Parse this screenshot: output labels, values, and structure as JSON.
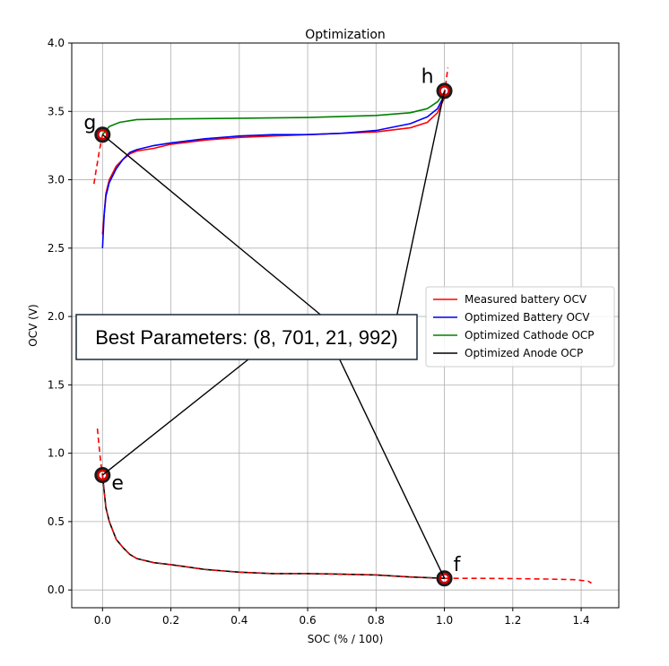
{
  "chart_data": {
    "type": "line",
    "title": "Optimization",
    "xlabel": "SOC (% / 100)",
    "ylabel": "OCV (V)",
    "xlim": [
      -0.09,
      1.51
    ],
    "ylim": [
      -0.13,
      4.0
    ],
    "grid": true,
    "legend_placement": "center-right",
    "x_ticks": [
      0.0,
      0.2,
      0.4,
      0.6,
      0.8,
      1.0,
      1.2,
      1.4
    ],
    "x_tick_labels": [
      "0.0",
      "0.2",
      "0.4",
      "0.6",
      "0.8",
      "1.0",
      "1.2",
      "1.4"
    ],
    "y_ticks": [
      0.0,
      0.5,
      1.0,
      1.5,
      2.0,
      2.5,
      3.0,
      3.5,
      4.0
    ],
    "y_tick_labels": [
      "0.0",
      "0.5",
      "1.0",
      "1.5",
      "2.0",
      "2.5",
      "3.0",
      "3.5",
      "4.0"
    ],
    "series": [
      {
        "name": "Measured battery OCV",
        "color": "#ff0000",
        "style": "solid",
        "x": [
          0.0,
          0.01,
          0.02,
          0.04,
          0.06,
          0.08,
          0.1,
          0.15,
          0.2,
          0.3,
          0.4,
          0.5,
          0.6,
          0.7,
          0.8,
          0.9,
          0.95,
          0.98,
          1.0
        ],
        "y": [
          2.6,
          2.9,
          3.0,
          3.1,
          3.15,
          3.19,
          3.21,
          3.23,
          3.26,
          3.29,
          3.31,
          3.32,
          3.33,
          3.34,
          3.35,
          3.38,
          3.42,
          3.49,
          3.6
        ]
      },
      {
        "name": "Optimized Battery OCV",
        "color": "#0000ff",
        "style": "solid",
        "x": [
          0.0,
          0.005,
          0.01,
          0.02,
          0.04,
          0.06,
          0.08,
          0.1,
          0.15,
          0.2,
          0.3,
          0.4,
          0.5,
          0.6,
          0.7,
          0.8,
          0.9,
          0.95,
          0.98,
          1.0
        ],
        "y": [
          2.5,
          2.75,
          2.88,
          2.98,
          3.08,
          3.15,
          3.2,
          3.22,
          3.25,
          3.27,
          3.3,
          3.32,
          3.33,
          3.33,
          3.34,
          3.36,
          3.41,
          3.46,
          3.52,
          3.62
        ]
      },
      {
        "name": "Optimized Cathode OCP",
        "color": "#008000",
        "style": "solid",
        "x": [
          0.0,
          0.02,
          0.05,
          0.1,
          0.2,
          0.4,
          0.6,
          0.8,
          0.9,
          0.95,
          0.98,
          1.0
        ],
        "y": [
          3.33,
          3.39,
          3.42,
          3.44,
          3.445,
          3.45,
          3.455,
          3.47,
          3.49,
          3.52,
          3.57,
          3.64
        ]
      },
      {
        "name": "Optimized Anode OCP",
        "color": "#000000",
        "style": "solid",
        "x": [
          0.0,
          0.01,
          0.02,
          0.04,
          0.06,
          0.08,
          0.1,
          0.15,
          0.2,
          0.3,
          0.4,
          0.5,
          0.6,
          0.7,
          0.8,
          0.9,
          1.0
        ],
        "y": [
          0.84,
          0.6,
          0.5,
          0.37,
          0.31,
          0.26,
          0.23,
          0.2,
          0.185,
          0.15,
          0.13,
          0.12,
          0.12,
          0.115,
          0.11,
          0.095,
          0.085
        ]
      }
    ],
    "dashed_extensions": [
      {
        "color": "#ff0000",
        "x": [
          -0.025,
          -0.02,
          -0.01,
          0.0
        ],
        "y": [
          2.97,
          3.05,
          3.2,
          3.33
        ]
      },
      {
        "color": "#ff0000",
        "x": [
          1.0,
          1.005,
          1.01
        ],
        "y": [
          3.62,
          3.72,
          3.82
        ]
      },
      {
        "color": "#ff0000",
        "x": [
          -0.015,
          -0.01,
          -0.005,
          0.0
        ],
        "y": [
          1.18,
          1.05,
          0.93,
          0.84
        ]
      },
      {
        "color": "#ff0000",
        "x": [
          1.0,
          1.1,
          1.2,
          1.3,
          1.38,
          1.42,
          1.43
        ],
        "y": [
          0.085,
          0.085,
          0.083,
          0.08,
          0.075,
          0.065,
          0.05
        ]
      }
    ],
    "marked_points": [
      {
        "label": "g",
        "x": 0.0,
        "y": 3.33
      },
      {
        "label": "h",
        "x": 1.0,
        "y": 3.65
      },
      {
        "label": "e",
        "x": 0.0,
        "y": 0.84
      },
      {
        "label": "f",
        "x": 1.0,
        "y": 0.085
      }
    ],
    "annotation": "Best Parameters: (8, 701, 21, 992)"
  }
}
